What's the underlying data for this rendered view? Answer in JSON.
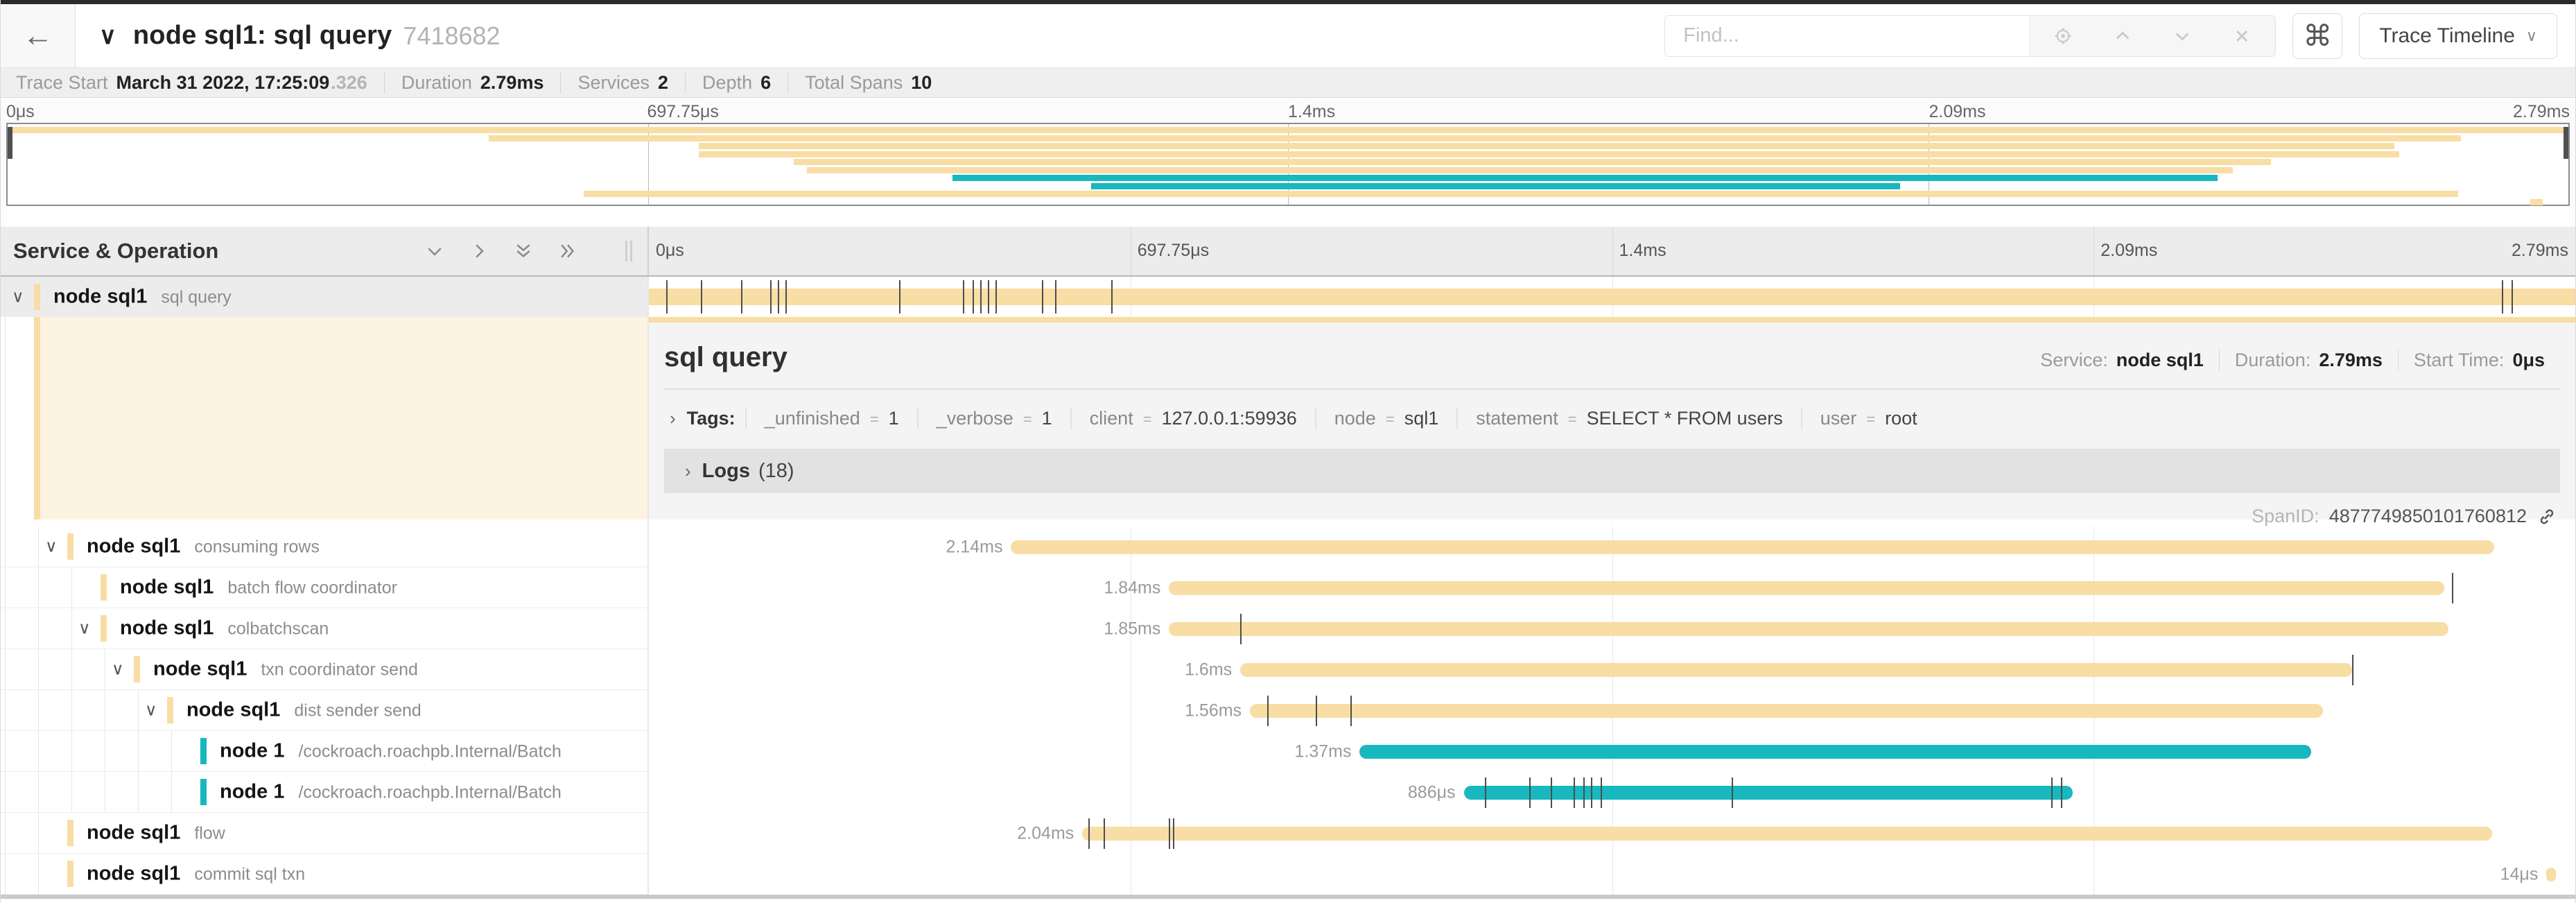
{
  "colors": {
    "tan": "#F8DDA4",
    "teal": "#17B8BE",
    "tick": "#4d4d4d"
  },
  "header": {
    "back_icon": "←",
    "collapse_icon": "∨",
    "title": "node sql1: sql query",
    "trace_id": "7418682",
    "find_placeholder": "Find...",
    "shortcut_label": "⌘",
    "view_button_label": "Trace Timeline",
    "view_button_chevron": "∨"
  },
  "trace_info": {
    "items": [
      {
        "label": "Trace Start",
        "value": "March 31 2022, 17:25:09",
        "muted_suffix": ".326"
      },
      {
        "label": "Duration",
        "value": "2.79ms"
      },
      {
        "label": "Services",
        "value": "2"
      },
      {
        "label": "Depth",
        "value": "6"
      },
      {
        "label": "Total Spans",
        "value": "10"
      }
    ]
  },
  "time_axis": {
    "ticks": [
      "0μs",
      "697.75μs",
      "1.4ms",
      "2.09ms",
      "2.79ms"
    ]
  },
  "left_header": {
    "title": "Service & Operation",
    "twisty": "∨"
  },
  "detail": {
    "title": "sql query",
    "meta": [
      {
        "label": "Service:",
        "value": "node sql1"
      },
      {
        "label": "Duration:",
        "value": "2.79ms"
      },
      {
        "label": "Start Time:",
        "value": "0μs"
      }
    ],
    "tags_chevron": "›",
    "tags_label": "Tags:",
    "tags": [
      {
        "key": "_unfinished",
        "value": "1"
      },
      {
        "key": "_verbose",
        "value": "1"
      },
      {
        "key": "client",
        "value": "127.0.0.1:59936"
      },
      {
        "key": "node",
        "value": "sql1"
      },
      {
        "key": "statement",
        "value": "SELECT * FROM users"
      },
      {
        "key": "user",
        "value": "root"
      }
    ],
    "logs_chevron": "›",
    "logs_label": "Logs",
    "logs_count": "(18)",
    "span_id_label": "SpanID:",
    "span_id": "4877749850101760812"
  },
  "spans": [
    {
      "service": "node sql1",
      "operation": "sql query",
      "depth": 0,
      "expandable": true,
      "selected": true,
      "color": "tan",
      "start": 0.0,
      "end": 1.0,
      "duration_label": "",
      "ticks": [
        0.009,
        0.027,
        0.048,
        0.063,
        0.067,
        0.071,
        0.13,
        0.163,
        0.168,
        0.172,
        0.176,
        0.18,
        0.204,
        0.211,
        0.24,
        0.962,
        0.967
      ]
    },
    {
      "service": "node sql1",
      "operation": "consuming rows",
      "depth": 1,
      "expandable": true,
      "color": "tan",
      "start": 0.188,
      "end": 0.958,
      "duration_label": "2.14ms",
      "ticks": []
    },
    {
      "service": "node sql1",
      "operation": "batch flow coordinator",
      "depth": 2,
      "expandable": false,
      "color": "tan",
      "start": 0.27,
      "end": 0.932,
      "duration_label": "1.84ms",
      "ticks": [
        0.936
      ]
    },
    {
      "service": "node sql1",
      "operation": "colbatchscan",
      "depth": 2,
      "expandable": true,
      "color": "tan",
      "start": 0.27,
      "end": 0.934,
      "duration_label": "1.85ms",
      "ticks": [
        0.307
      ]
    },
    {
      "service": "node sql1",
      "operation": "txn coordinator send",
      "depth": 3,
      "expandable": true,
      "color": "tan",
      "start": 0.307,
      "end": 0.884,
      "duration_label": "1.6ms",
      "ticks": [
        0.884
      ]
    },
    {
      "service": "node sql1",
      "operation": "dist sender send",
      "depth": 4,
      "expandable": true,
      "color": "tan",
      "start": 0.312,
      "end": 0.869,
      "duration_label": "1.56ms",
      "ticks": [
        0.321,
        0.346,
        0.364
      ]
    },
    {
      "service": "node 1",
      "operation": "/cockroach.roachpb.Internal/Batch",
      "depth": 5,
      "expandable": false,
      "color": "teal",
      "start": 0.369,
      "end": 0.863,
      "duration_label": "1.37ms",
      "ticks": []
    },
    {
      "service": "node 1",
      "operation": "/cockroach.roachpb.Internal/Batch",
      "depth": 5,
      "expandable": false,
      "color": "teal",
      "start": 0.423,
      "end": 0.739,
      "duration_label": "886μs",
      "ticks": [
        0.434,
        0.457,
        0.468,
        0.48,
        0.485,
        0.489,
        0.494,
        0.562,
        0.728,
        0.733
      ]
    },
    {
      "service": "node sql1",
      "operation": "flow",
      "depth": 1,
      "expandable": false,
      "color": "tan",
      "start": 0.225,
      "end": 0.957,
      "duration_label": "2.04ms",
      "ticks": [
        0.228,
        0.236,
        0.27,
        0.272
      ]
    },
    {
      "service": "node sql1",
      "operation": "commit sql txn",
      "depth": 1,
      "expandable": false,
      "color": "tan",
      "start": 0.985,
      "end": 0.99,
      "duration_label": "14μs",
      "ticks": []
    }
  ]
}
